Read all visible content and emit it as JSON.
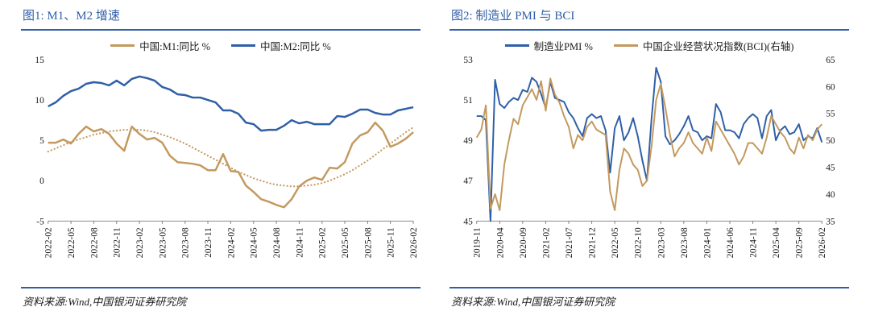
{
  "colors": {
    "blue": "#2f5fa7",
    "tan": "#c3995f",
    "axis_gray": "#7f7f7f",
    "title_blue": "#2f5fa7"
  },
  "panels": [
    {
      "source": "资料来源:Wind,中国银河证券研究院"
    },
    {
      "source": "资料来源:Wind,中国银河证券研究院"
    }
  ],
  "chart_data": [
    {
      "type": "line",
      "title": "图1: M1、M2 增速",
      "x_unit": "month",
      "xtick_step": 3,
      "xtick_labels": [
        "2022-02",
        "2022-05",
        "2022-08",
        "2022-11",
        "2023-02",
        "2023-05",
        "2023-08",
        "2023-11",
        "2024-02",
        "2024-05",
        "2024-08",
        "2024-11",
        "2025-02",
        "2025-05",
        "2025-08",
        "2025-11",
        "2026-02"
      ],
      "ylim": [
        -5,
        15
      ],
      "yticks": [
        15,
        10,
        5,
        0,
        -5
      ],
      "grid": false,
      "legend_position": "top",
      "series": [
        {
          "name": "中国:M1:同比 %",
          "color": "#c3995f",
          "dash": "solid",
          "axis": "left",
          "in_legend": true,
          "values": [
            4.7,
            4.7,
            5.1,
            4.6,
            5.8,
            6.7,
            6.1,
            6.4,
            5.8,
            4.6,
            3.7,
            6.7,
            5.8,
            5.1,
            5.3,
            4.7,
            3.1,
            2.3,
            2.2,
            2.1,
            1.9,
            1.3,
            1.3,
            3.3,
            1.2,
            1.1,
            -0.6,
            -1.4,
            -2.3,
            -2.6,
            -3.0,
            -3.3,
            -2.3,
            -0.7,
            0.0,
            0.4,
            0.1,
            1.6,
            1.5,
            2.3,
            4.6,
            5.6,
            6.0,
            7.2,
            6.2,
            4.2,
            4.6,
            5.2,
            6.0
          ]
        },
        {
          "name": "中国:M2:同比 %",
          "color": "#2f5fa7",
          "dash": "solid",
          "axis": "left",
          "in_legend": true,
          "values": [
            9.2,
            9.7,
            10.5,
            11.1,
            11.4,
            12.0,
            12.2,
            12.1,
            11.8,
            12.4,
            11.8,
            12.6,
            12.9,
            12.7,
            12.4,
            11.6,
            11.3,
            10.7,
            10.6,
            10.3,
            10.3,
            10.0,
            9.7,
            8.7,
            8.7,
            8.3,
            7.2,
            7.0,
            6.2,
            6.3,
            6.3,
            6.8,
            7.5,
            7.1,
            7.3,
            7.0,
            7.0,
            7.0,
            8.0,
            7.9,
            8.3,
            8.8,
            8.8,
            8.4,
            8.2,
            8.2,
            8.7,
            8.9,
            9.1
          ]
        },
        {
          "name": "M1同比趋势线(虚线)",
          "color": "#c3995f",
          "dash": "dotted",
          "axis": "left",
          "in_legend": false,
          "values": [
            3.6,
            4.0,
            4.4,
            4.8,
            5.1,
            5.4,
            5.7,
            5.9,
            6.1,
            6.2,
            6.3,
            6.3,
            6.3,
            6.2,
            6.0,
            5.7,
            5.4,
            5.0,
            4.6,
            4.1,
            3.6,
            3.1,
            2.6,
            2.1,
            1.6,
            1.1,
            0.7,
            0.3,
            0.0,
            -0.3,
            -0.5,
            -0.6,
            -0.7,
            -0.7,
            -0.6,
            -0.5,
            -0.3,
            0.0,
            0.4,
            0.8,
            1.3,
            1.9,
            2.5,
            3.2,
            3.9,
            4.6,
            5.3,
            6.0,
            6.6
          ]
        }
      ]
    },
    {
      "type": "line",
      "title": "图2: 制造业 PMI 与 BCI",
      "x_unit": "month",
      "xtick_step": 5,
      "xtick_labels": [
        "2019-11",
        "2020-04",
        "2020-09",
        "2021-02",
        "2021-07",
        "2021-12",
        "2022-05",
        "2022-10",
        "2023-03",
        "2023-08",
        "2024-01",
        "2024-06",
        "2024-11",
        "2025-04",
        "2025-09",
        "2026-02"
      ],
      "ylim": [
        45,
        53
      ],
      "yticks": [
        53,
        51,
        49,
        47,
        45
      ],
      "ylim_right": [
        35,
        65
      ],
      "yticks_right": [
        65,
        60,
        55,
        50,
        45,
        40,
        35
      ],
      "grid": false,
      "legend_position": "top",
      "series": [
        {
          "name": "制造业PMI %",
          "color": "#2f5fa7",
          "dash": "solid",
          "axis": "left",
          "in_legend": true,
          "values": [
            50.2,
            50.2,
            50.0,
            35.7,
            52.0,
            50.8,
            50.6,
            50.9,
            51.1,
            51.0,
            51.5,
            51.4,
            52.1,
            51.9,
            51.3,
            50.6,
            51.9,
            51.1,
            51.0,
            50.9,
            50.4,
            50.1,
            49.6,
            49.2,
            50.1,
            50.3,
            50.1,
            50.2,
            49.5,
            47.4,
            49.6,
            50.2,
            49.0,
            49.4,
            50.1,
            49.2,
            48.0,
            47.0,
            50.1,
            52.6,
            51.9,
            49.2,
            48.8,
            49.0,
            49.3,
            49.7,
            50.2,
            49.5,
            49.4,
            49.0,
            49.2,
            49.1,
            50.8,
            50.4,
            49.5,
            49.5,
            49.4,
            49.1,
            49.8,
            50.1,
            50.3,
            50.1,
            49.1,
            50.2,
            50.5,
            49.0,
            49.5,
            49.7,
            49.3,
            49.4,
            49.8,
            49.0,
            49.2,
            49.1,
            49.6,
            48.9
          ]
        },
        {
          "name": "中国企业经营状况指数(BCI)(右轴)",
          "color": "#c3995f",
          "dash": "solid",
          "axis": "right",
          "in_legend": true,
          "values": [
            50.5,
            52.0,
            56.5,
            37.3,
            40.0,
            37.0,
            45.5,
            50.0,
            54.0,
            53.0,
            56.5,
            58.0,
            59.5,
            57.5,
            61.0,
            55.5,
            61.5,
            58.5,
            57.0,
            54.5,
            52.5,
            48.5,
            51.0,
            50.0,
            52.5,
            53.5,
            52.0,
            51.5,
            51.0,
            40.5,
            37.0,
            44.5,
            48.5,
            47.5,
            45.5,
            44.5,
            41.5,
            42.5,
            49.0,
            57.5,
            60.5,
            56.0,
            51.0,
            47.0,
            48.5,
            49.5,
            51.5,
            49.5,
            48.5,
            47.5,
            50.5,
            48.0,
            53.5,
            52.0,
            50.5,
            49.0,
            47.5,
            45.5,
            47.0,
            49.5,
            49.5,
            48.5,
            47.5,
            50.5,
            54.5,
            53.0,
            51.5,
            50.5,
            48.5,
            47.5,
            50.5,
            48.5,
            51.0,
            50.0,
            52.0,
            53.0
          ]
        }
      ]
    }
  ]
}
